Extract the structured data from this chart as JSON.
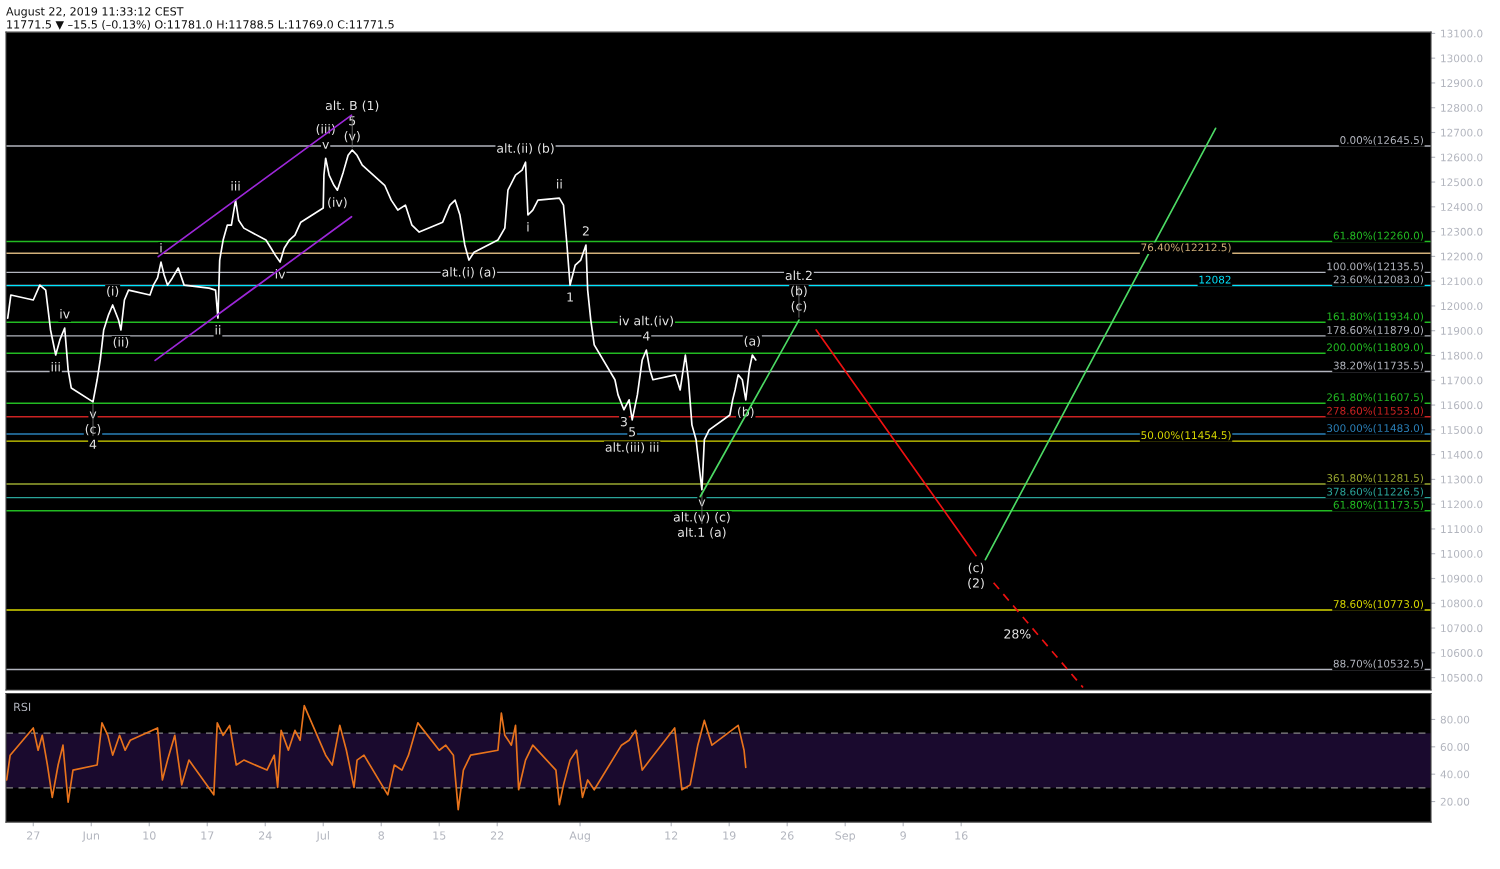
{
  "chart_data": [
    {
      "type": "line",
      "annotations": [
        "August 22, 2019 11:33:12 CEST",
        "11771.5 ▼ –15.5 (–0.13%) O:11781.0 H:11788.5 L:11769.0 C:11771.5",
        {
          "text": "(v)",
          "x": "2019-07-04T12:00",
          "y": 12629
        },
        {
          "text": "5",
          "x": "2019-07-04T12:00",
          "y": 12629
        },
        {
          "text": "alt. B (1)",
          "x": "2019-07-04T12:00",
          "y": 12629
        },
        {
          "text": "v",
          "x": "2019-07-01T07:00",
          "y": 12596
        },
        {
          "text": "(iii)",
          "x": "2019-07-01T07:00",
          "y": 12596
        },
        {
          "text": "(iv)",
          "x": "2019-07-02T17:00",
          "y": 12467
        },
        {
          "text": "iii",
          "x": "2019-06-20T10:00",
          "y": 12427
        },
        {
          "text": "i",
          "x": "2019-06-11T10:00",
          "y": 12177
        },
        {
          "text": "iv",
          "x": "2019-06-25T19:00",
          "y": 12177
        },
        {
          "text": "ii",
          "x": "2019-06-18T07:00",
          "y": 11951
        },
        {
          "text": "(i)",
          "x": "2019-06-05T14:00",
          "y": 12004
        },
        {
          "text": "(ii)",
          "x": "2019-06-06T14:00",
          "y": 11903
        },
        {
          "text": "iv",
          "x": "2019-05-30T19:00",
          "y": 11911
        },
        {
          "text": "iii",
          "x": "2019-05-29T17:00",
          "y": 11802
        },
        {
          "text": "v",
          "x": "2019-06-03T05:00",
          "y": 11613
        },
        {
          "text": "(c)",
          "x": "2019-06-03T05:00",
          "y": 11613
        },
        {
          "text": "4",
          "x": "2019-06-03T05:00",
          "y": 11613
        },
        {
          "text": "alt.(ii) (b)",
          "x": "2019-07-25T10:00",
          "y": 12580
        },
        {
          "text": "ii",
          "x": "2019-07-29T12:00",
          "y": 12435
        },
        {
          "text": "i",
          "x": "2019-07-25T17:00",
          "y": 12367
        },
        {
          "text": "alt.(i) (a)",
          "x": "2019-07-18T14:00",
          "y": 12185
        },
        {
          "text": "2",
          "x": "2019-08-01T17:00",
          "y": 12246
        },
        {
          "text": "1",
          "x": "2019-07-30T19:00",
          "y": 12084
        },
        {
          "text": "4",
          "x": "2019-08-09T00:00",
          "y": 11822
        },
        {
          "text": "iv alt.(iv)",
          "x": "2019-08-09T00:00",
          "y": 11822
        },
        {
          "text": "3",
          "x": "2019-08-06T07:00",
          "y": 11581
        },
        {
          "text": "5",
          "x": "2019-08-07T07:00",
          "y": 11540
        },
        {
          "text": "alt.(iii) iii",
          "x": "2019-08-07T07:00",
          "y": 11540
        },
        {
          "text": "v",
          "x": "2019-08-15T17:00",
          "y": 11258
        },
        {
          "text": "alt.(v) (c)",
          "x": "2019-08-15T17:00",
          "y": 11258
        },
        {
          "text": "alt.1 (a)",
          "x": "2019-08-15T17:00",
          "y": 11258
        },
        {
          "text": "(a)",
          "x": "2019-08-21T19:00",
          "y": 11802
        },
        {
          "text": "(b)",
          "x": "2019-08-21T00:00",
          "y": 11621
        },
        {
          "text": "(c)",
          "x": "2019-08-27T10:00",
          "y": 11943
        },
        {
          "text": "(b)",
          "x": "2019-08-27T10:00",
          "y": 11943
        },
        {
          "text": "alt.2",
          "x": "2019-08-27T10:00",
          "y": 11943
        },
        {
          "text": "(c)",
          "x": "2019-09-17T19:00",
          "y": 10992
        },
        {
          "text": "(2)",
          "x": "2019-09-17T19:00",
          "y": 10992
        },
        {
          "text": "28%",
          "x": "2019-09-25T07:00",
          "y": 10672
        }
      ],
      "series": [
        {
          "color": "#ffffff",
          "x": [
            "2019-05-23T22:00",
            "2019-05-24T07:00",
            "2019-05-27T00:00",
            "2019-05-27T19:00",
            "2019-05-28T12:00",
            "2019-05-29T02:00",
            "2019-05-29T17:00",
            "2019-05-30T05:00",
            "2019-05-30T19:00",
            "2019-05-31T05:00",
            "2019-05-31T14:00",
            "2019-06-03T05:00",
            "2019-06-03T17:00",
            "2019-06-04T02:00",
            "2019-06-04T12:00",
            "2019-06-05T02:00",
            "2019-06-05T14:00",
            "2019-06-06T07:00",
            "2019-06-06T14:00",
            "2019-06-07T00:00",
            "2019-06-07T12:00",
            "2019-06-10T02:00",
            "2019-06-10T12:00",
            "2019-06-11T00:00",
            "2019-06-11T10:00",
            "2019-06-11T19:00",
            "2019-06-12T05:00",
            "2019-06-12T19:00",
            "2019-06-13T12:00",
            "2019-06-14T05:00",
            "2019-06-17T05:00",
            "2019-06-18T00:00",
            "2019-06-18T07:00",
            "2019-06-18T12:00",
            "2019-06-18T22:00",
            "2019-06-19T10:00",
            "2019-06-19T22:00",
            "2019-06-20T10:00",
            "2019-06-20T19:00",
            "2019-06-21T10:00",
            "2019-06-24T02:00",
            "2019-06-24T17:00",
            "2019-06-25T05:00",
            "2019-06-25T19:00",
            "2019-06-26T07:00",
            "2019-06-26T22:00",
            "2019-06-27T14:00",
            "2019-06-28T07:00",
            "2019-07-01T00:00",
            "2019-07-01T02:00",
            "2019-07-01T07:00",
            "2019-07-01T17:00",
            "2019-07-02T07:00",
            "2019-07-02T17:00",
            "2019-07-03T10:00",
            "2019-07-04T00:00",
            "2019-07-04T12:00",
            "2019-07-05T02:00",
            "2019-07-05T17:00",
            "2019-07-08T10:00",
            "2019-07-09T05:00",
            "2019-07-10T00:00",
            "2019-07-10T22:00",
            "2019-07-11T17:00",
            "2019-07-12T14:00",
            "2019-07-15T10:00",
            "2019-07-16T07:00",
            "2019-07-16T22:00",
            "2019-07-17T12:00",
            "2019-07-18T02:00",
            "2019-07-18T14:00",
            "2019-07-19T05:00",
            "2019-07-22T02:00",
            "2019-07-22T22:00",
            "2019-07-23T07:00",
            "2019-07-24T05:00",
            "2019-07-25T00:00",
            "2019-07-25T10:00",
            "2019-07-25T17:00",
            "2019-07-26T07:00",
            "2019-07-26T22:00",
            "2019-07-29T12:00",
            "2019-07-30T00:00",
            "2019-07-30T10:00",
            "2019-07-30T19:00",
            "2019-07-31T10:00",
            "2019-08-01T02:00",
            "2019-08-01T17:00",
            "2019-08-01T22:00",
            "2019-08-02T07:00",
            "2019-08-02T17:00",
            "2019-08-05T05:00",
            "2019-08-05T14:00",
            "2019-08-06T07:00",
            "2019-08-06T22:00",
            "2019-08-07T07:00",
            "2019-08-07T22:00",
            "2019-08-08T12:00",
            "2019-08-09T00:00",
            "2019-08-09T10:00",
            "2019-08-09T19:00",
            "2019-08-12T12:00",
            "2019-08-13T02:00",
            "2019-08-13T17:00",
            "2019-08-14T02:00",
            "2019-08-14T12:00",
            "2019-08-15T00:00",
            "2019-08-15T10:00",
            "2019-08-15T17:00",
            "2019-08-16T00:00",
            "2019-08-16T14:00",
            "2019-08-19T02:00",
            "2019-08-19T10:00",
            "2019-08-19T17:00",
            "2019-08-20T02:00",
            "2019-08-20T14:00",
            "2019-08-21T00:00",
            "2019-08-21T10:00",
            "2019-08-21T19:00",
            "2019-08-22T05:00"
          ],
          "values": [
            11951,
            12044,
            12024,
            12084,
            12064,
            11903,
            11802,
            11863,
            11911,
            11742,
            11669,
            11613,
            11702,
            11782,
            11903,
            11964,
            12004,
            11943,
            11903,
            12024,
            12064,
            12044,
            12084,
            12113,
            12177,
            12125,
            12084,
            12113,
            12153,
            12084,
            12072,
            12064,
            11951,
            12185,
            12266,
            12326,
            12326,
            12427,
            12346,
            12314,
            12266,
            12233,
            12205,
            12177,
            12233,
            12266,
            12286,
            12338,
            12395,
            12528,
            12596,
            12528,
            12487,
            12467,
            12540,
            12608,
            12629,
            12608,
            12568,
            12487,
            12427,
            12387,
            12407,
            12326,
            12298,
            12338,
            12407,
            12427,
            12367,
            12246,
            12185,
            12217,
            12266,
            12314,
            12467,
            12528,
            12548,
            12580,
            12367,
            12387,
            12427,
            12435,
            12407,
            12246,
            12084,
            12165,
            12185,
            12246,
            12064,
            11943,
            11843,
            11702,
            11641,
            11581,
            11621,
            11540,
            11641,
            11782,
            11822,
            11742,
            11702,
            11722,
            11661,
            11802,
            11702,
            11520,
            11460,
            11339,
            11258,
            11460,
            11500,
            11560,
            11621,
            11661,
            11722,
            11702,
            11621,
            11742,
            11802,
            11782
          ]
        },
        {
          "color": "#9c27d8",
          "x": [
            "2019-06-10T17:00",
            "2019-07-04T10:00"
          ],
          "values": [
            11780,
            12360
          ]
        },
        {
          "color": "#9c27d8",
          "x": [
            "2019-06-11T02:00",
            "2019-07-04T10:00"
          ],
          "values": [
            12199,
            12770
          ]
        },
        {
          "color": "#4cd964",
          "x": [
            "2019-08-15T12:00",
            "2019-08-27T10:00"
          ],
          "values": [
            11230,
            11943
          ]
        },
        {
          "color": "#ee1111",
          "x": [
            "2019-08-29T12:00",
            "2019-09-17T19:00"
          ],
          "values": [
            11903,
            10992
          ]
        },
        {
          "color": "#4cd964",
          "x": [
            "2019-09-18T22:00",
            "2019-10-16T17:00"
          ],
          "values": [
            10976,
            12717
          ]
        },
        {
          "color": "#ee1111",
          "line_style": "dashed",
          "x": [
            "2019-09-19T22:00",
            "2019-09-25T07:00",
            "2019-09-30T17:00"
          ],
          "values": [
            10883,
            10672,
            10460
          ]
        }
      ],
      "ref_lines": [
        {
          "axis": "y",
          "value": 12645.5,
          "label": "0.00%(12645.5)",
          "color": "#b2b5be"
        },
        {
          "axis": "y",
          "value": 12260,
          "label": "61.80%(12260.0)",
          "color": "#22bb22"
        },
        {
          "axis": "y",
          "value": 12212.5,
          "label": "76.40%(12212.5)",
          "color": "#d2b07a"
        },
        {
          "axis": "y",
          "value": 12135.5,
          "label": "100.00%(12135.5)",
          "color": "#b2b5be"
        },
        {
          "axis": "y",
          "value": 12083,
          "label": "23.60%(12083.0)",
          "color": "#b2b5be"
        },
        {
          "axis": "y",
          "value": 12082,
          "label": "12082",
          "color": "#00e5ff"
        },
        {
          "axis": "y",
          "value": 11934,
          "label": "161.80%(11934.0)",
          "color": "#22bb22"
        },
        {
          "axis": "y",
          "value": 11879,
          "label": "178.60%(11879.0)",
          "color": "#b2b5be"
        },
        {
          "axis": "y",
          "value": 11809,
          "label": "200.00%(11809.0)",
          "color": "#22bb22"
        },
        {
          "axis": "y",
          "value": 11735.5,
          "label": "38.20%(11735.5)",
          "color": "#b2b5be"
        },
        {
          "axis": "y",
          "value": 11607.5,
          "label": "261.80%(11607.5)",
          "color": "#22bb22"
        },
        {
          "axis": "y",
          "value": 11553,
          "label": "278.60%(11553.0)",
          "color": "#cc2222"
        },
        {
          "axis": "y",
          "value": 11483,
          "label": "300.00%(11483.0)",
          "color": "#2a80b9"
        },
        {
          "axis": "y",
          "value": 11454.5,
          "label": "50.00%(11454.5)",
          "color": "#d8d800"
        },
        {
          "axis": "y",
          "value": 11281.5,
          "label": "361.80%(11281.5)",
          "color": "#9aa830"
        },
        {
          "axis": "y",
          "value": 11226.5,
          "label": "378.60%(11226.5)",
          "color": "#2aa59a"
        },
        {
          "axis": "y",
          "value": 11173.5,
          "label": "61.80%(11173.5)",
          "color": "#22bb22"
        },
        {
          "axis": "y",
          "value": 10773,
          "label": "78.60%(10773.0)",
          "color": "#d8d800"
        },
        {
          "axis": "y",
          "value": 10532.5,
          "label": "88.70%(10532.5)",
          "color": "#b2b5be"
        }
      ],
      "xlim": [
        "2019-05-23T17:00",
        "2019-11-11T17:00"
      ],
      "ylim": [
        10450,
        13105
      ],
      "yticks": [
        {
          "value": 10500,
          "label": "10500.0"
        },
        {
          "value": 10600,
          "label": "10600.0"
        },
        {
          "value": 10700,
          "label": "10700.0"
        },
        {
          "value": 10800,
          "label": "10800.0"
        },
        {
          "value": 10900,
          "label": "10900.0"
        },
        {
          "value": 11000,
          "label": "11000.0"
        },
        {
          "value": 11100,
          "label": "11100.0"
        },
        {
          "value": 11200,
          "label": "11200.0"
        },
        {
          "value": 11300,
          "label": "11300.0"
        },
        {
          "value": 11400,
          "label": "11400.0"
        },
        {
          "value": 11500,
          "label": "11500.0"
        },
        {
          "value": 11600,
          "label": "11600.0"
        },
        {
          "value": 11700,
          "label": "11700.0"
        },
        {
          "value": 11800,
          "label": "11800.0"
        },
        {
          "value": 11900,
          "label": "11900.0"
        },
        {
          "value": 12000,
          "label": "12000.0"
        },
        {
          "value": 12100,
          "label": "12100.0"
        },
        {
          "value": 12200,
          "label": "12200.0"
        },
        {
          "value": 12300,
          "label": "12300.0"
        },
        {
          "value": 12400,
          "label": "12400.0"
        },
        {
          "value": 12500,
          "label": "12500.0"
        },
        {
          "value": 12600,
          "label": "12600.0"
        },
        {
          "value": 12700,
          "label": "12700.0"
        },
        {
          "value": 12800,
          "label": "12800.0"
        },
        {
          "value": 12900,
          "label": "12900.0"
        },
        {
          "value": 13000,
          "label": "13000.0"
        },
        {
          "value": 13100,
          "label": "13100.0"
        }
      ],
      "tick_labels": "y"
    },
    {
      "type": "line",
      "title": "RSI",
      "series": [
        {
          "color": "#e8731c",
          "x": [
            "2019-05-23T19:00",
            "2019-05-24T05:00",
            "2019-05-27T00:00",
            "2019-05-27T14:00",
            "2019-05-28T02:00",
            "2019-05-28T17:00",
            "2019-05-29T07:00",
            "2019-05-30T00:00",
            "2019-05-30T14:00",
            "2019-05-31T05:00",
            "2019-05-31T19:00",
            "2019-06-03T17:00",
            "2019-06-04T07:00",
            "2019-06-05T00:00",
            "2019-06-05T14:00",
            "2019-06-06T10:00",
            "2019-06-07T02:00",
            "2019-06-07T17:00",
            "2019-06-11T00:00",
            "2019-06-11T14:00",
            "2019-06-12T05:00",
            "2019-06-13T02:00",
            "2019-06-13T22:00",
            "2019-06-14T19:00",
            "2019-06-17T19:00",
            "2019-06-18T05:00",
            "2019-06-18T22:00",
            "2019-06-19T17:00",
            "2019-06-20T12:00",
            "2019-06-21T10:00",
            "2019-06-24T05:00",
            "2019-06-25T02:00",
            "2019-06-25T12:00",
            "2019-06-25T22:00",
            "2019-06-26T19:00",
            "2019-06-27T14:00",
            "2019-06-28T05:00",
            "2019-06-28T17:00",
            "2019-07-01T07:00",
            "2019-07-02T02:00",
            "2019-07-03T00:00",
            "2019-07-03T19:00",
            "2019-07-04T17:00",
            "2019-07-05T02:00",
            "2019-07-05T22:00",
            "2019-07-08T19:00",
            "2019-07-09T14:00",
            "2019-07-10T12:00",
            "2019-07-11T07:00",
            "2019-07-12T10:00",
            "2019-07-15T00:00",
            "2019-07-15T19:00",
            "2019-07-16T17:00",
            "2019-07-17T07:00",
            "2019-07-17T22:00",
            "2019-07-18T19:00",
            "2019-07-22T02:00",
            "2019-07-22T12:00",
            "2019-07-22T22:00",
            "2019-07-23T17:00",
            "2019-07-24T05:00",
            "2019-07-24T14:00",
            "2019-07-25T10:00",
            "2019-07-26T07:00",
            "2019-07-29T02:00",
            "2019-07-29T12:00",
            "2019-07-30T00:00",
            "2019-07-30T19:00",
            "2019-07-31T14:00",
            "2019-08-01T07:00",
            "2019-08-01T22:00",
            "2019-08-02T17:00",
            "2019-08-06T00:00",
            "2019-08-06T22:00",
            "2019-08-07T17:00",
            "2019-08-08T12:00",
            "2019-08-09T10:00",
            "2019-08-12T10:00",
            "2019-08-13T07:00",
            "2019-08-14T07:00",
            "2019-08-15T05:00",
            "2019-08-16T00:00",
            "2019-08-16T22:00",
            "2019-08-20T02:00",
            "2019-08-20T19:00",
            "2019-08-21T00:00"
          ],
          "values": [
            35.8,
            53.9,
            73.8,
            57.5,
            68.4,
            46.7,
            23.1,
            46.7,
            61.2,
            19.5,
            43.0,
            46.7,
            77.5,
            68.4,
            53.9,
            68.4,
            57.5,
            64.8,
            73.8,
            35.8,
            50.3,
            68.4,
            32.2,
            50.3,
            24.9,
            77.5,
            68.4,
            75.7,
            46.7,
            50.3,
            43.0,
            53.9,
            30.4,
            72.0,
            57.5,
            72.0,
            64.8,
            90.1,
            53.9,
            46.7,
            75.7,
            57.5,
            30.4,
            50.3,
            53.9,
            24.9,
            46.7,
            43.0,
            53.9,
            77.5,
            57.5,
            61.2,
            53.9,
            14.1,
            43.0,
            53.9,
            57.5,
            84.7,
            68.4,
            61.2,
            75.7,
            28.6,
            50.3,
            61.2,
            43.0,
            17.7,
            32.2,
            50.3,
            57.5,
            23.1,
            35.8,
            28.6,
            61.2,
            64.8,
            72.0,
            43.0,
            50.3,
            73.8,
            28.6,
            32.2,
            61.2,
            79.3,
            61.2,
            75.7,
            57.5,
            44.9
          ]
        }
      ],
      "bands": [
        {
          "axis": "y",
          "from": 30,
          "to": 70,
          "color": "#1a0a2e"
        }
      ],
      "ref_lines": [
        {
          "axis": "y",
          "value": 70,
          "color": "#888888",
          "line_style": "dashed"
        },
        {
          "axis": "y",
          "value": 30,
          "color": "#888888",
          "line_style": "dashed"
        }
      ],
      "xlim": [
        "2019-05-23T17:00",
        "2019-11-11T17:00"
      ],
      "ylim": [
        5,
        99
      ],
      "xticks": [
        {
          "value": "2019-05-27",
          "label": "27"
        },
        {
          "value": "2019-06-03",
          "label": "Jun"
        },
        {
          "value": "2019-06-10",
          "label": "10"
        },
        {
          "value": "2019-06-17",
          "label": "17"
        },
        {
          "value": "2019-06-24",
          "label": "24"
        },
        {
          "value": "2019-07-01",
          "label": "Jul"
        },
        {
          "value": "2019-07-08",
          "label": "8"
        },
        {
          "value": "2019-07-15",
          "label": "15"
        },
        {
          "value": "2019-07-22",
          "label": "22"
        },
        {
          "value": "2019-08-01",
          "label": "Aug"
        },
        {
          "value": "2019-08-12",
          "label": "12"
        },
        {
          "value": "2019-08-19",
          "label": "19"
        },
        {
          "value": "2019-08-26",
          "label": "26"
        },
        {
          "value": "2019-09-02",
          "label": "Sep"
        },
        {
          "value": "2019-09-09",
          "label": "9"
        },
        {
          "value": "2019-09-16",
          "label": "16"
        }
      ],
      "yticks": [
        {
          "value": 20,
          "label": "20.00"
        },
        {
          "value": 40,
          "label": "40.00"
        },
        {
          "value": 60,
          "label": "60.00"
        },
        {
          "value": 80,
          "label": "80.00"
        }
      ]
    }
  ]
}
